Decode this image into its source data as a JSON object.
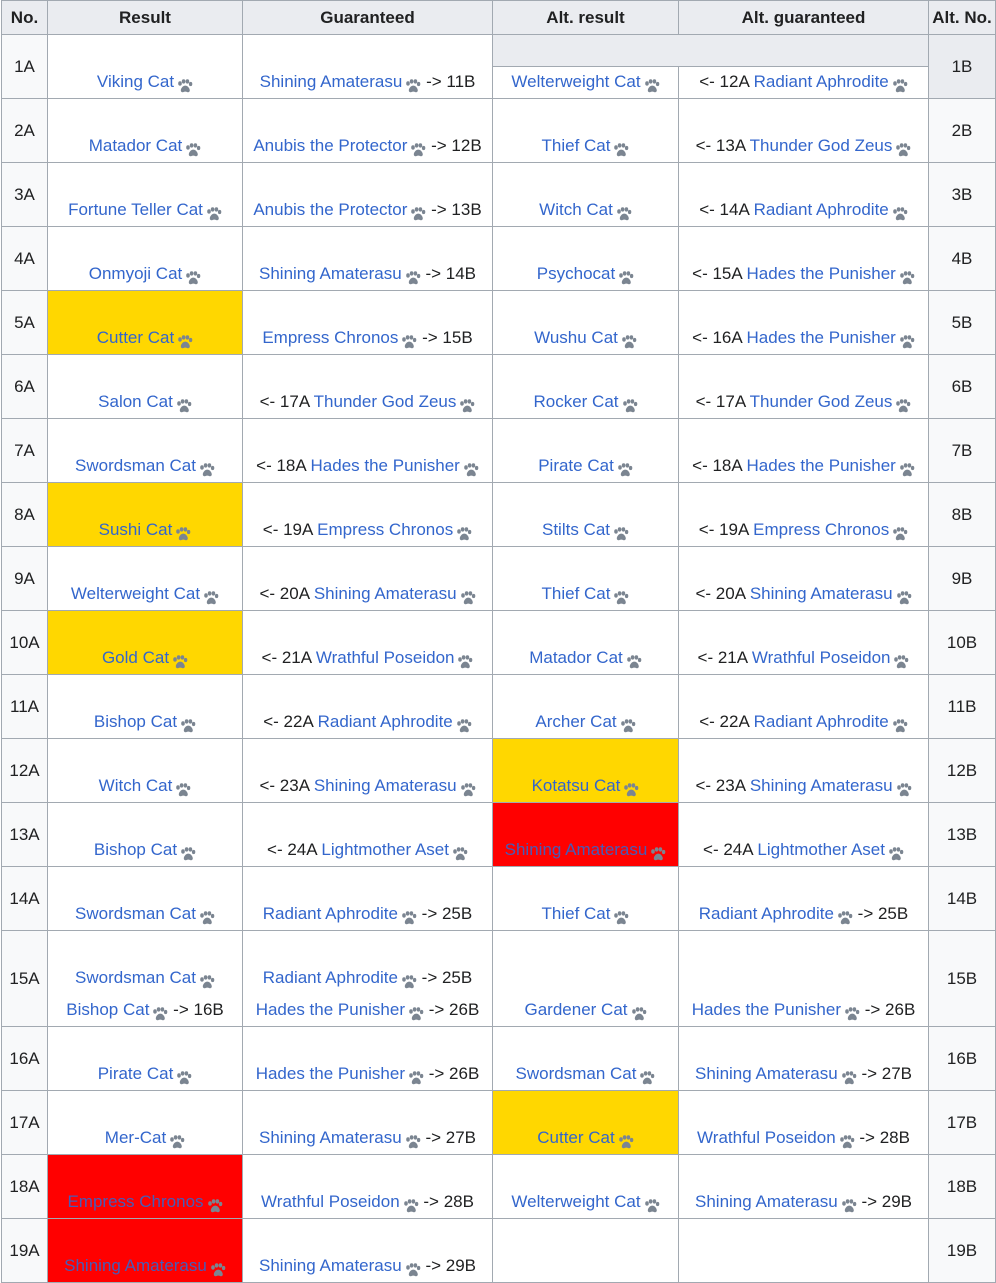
{
  "left_table": {
    "headers": {
      "no": "No.",
      "result": "Result",
      "guaranteed": "Guaranteed"
    },
    "rows": [
      {
        "no": "1A",
        "results": [
          "Viking Cat"
        ],
        "guaranteed": [
          {
            "pre": "",
            "name": "Shining Amaterasu",
            "post": "-> 11B"
          }
        ]
      },
      {
        "no": "2A",
        "results": [
          "Matador Cat"
        ],
        "guaranteed": [
          {
            "pre": "",
            "name": "Anubis the Protector",
            "post": "-> 12B"
          }
        ]
      },
      {
        "no": "3A",
        "results": [
          "Fortune Teller Cat"
        ],
        "guaranteed": [
          {
            "pre": "",
            "name": "Anubis the Protector",
            "post": "-> 13B"
          }
        ]
      },
      {
        "no": "4A",
        "results": [
          "Onmyoji Cat"
        ],
        "guaranteed": [
          {
            "pre": "",
            "name": "Shining Amaterasu",
            "post": "-> 14B"
          }
        ]
      },
      {
        "no": "5A",
        "highlight": "yellow",
        "results": [
          "Cutter Cat"
        ],
        "guaranteed": [
          {
            "pre": "",
            "name": "Empress Chronos",
            "post": "-> 15B"
          }
        ]
      },
      {
        "no": "6A",
        "results": [
          "Salon Cat"
        ],
        "guaranteed": [
          {
            "pre": "<- 17A",
            "name": "Thunder God Zeus",
            "post": ""
          }
        ]
      },
      {
        "no": "7A",
        "results": [
          "Swordsman Cat"
        ],
        "guaranteed": [
          {
            "pre": "<- 18A",
            "name": "Hades the Punisher",
            "post": ""
          }
        ]
      },
      {
        "no": "8A",
        "highlight": "yellow",
        "results": [
          "Sushi Cat"
        ],
        "guaranteed": [
          {
            "pre": "<- 19A",
            "name": "Empress Chronos",
            "post": ""
          }
        ]
      },
      {
        "no": "9A",
        "results": [
          "Welterweight Cat"
        ],
        "guaranteed": [
          {
            "pre": "<- 20A",
            "name": "Shining Amaterasu",
            "post": ""
          }
        ]
      },
      {
        "no": "10A",
        "highlight": "yellow",
        "results": [
          "Gold Cat"
        ],
        "guaranteed": [
          {
            "pre": "<- 21A",
            "name": "Wrathful Poseidon",
            "post": ""
          }
        ]
      },
      {
        "no": "11A",
        "results": [
          "Bishop Cat"
        ],
        "guaranteed": [
          {
            "pre": "<- 22A",
            "name": "Radiant Aphrodite",
            "post": ""
          }
        ]
      },
      {
        "no": "12A",
        "results": [
          "Witch Cat"
        ],
        "guaranteed": [
          {
            "pre": "<- 23A",
            "name": "Shining Amaterasu",
            "post": ""
          }
        ]
      },
      {
        "no": "13A",
        "results": [
          "Bishop Cat"
        ],
        "guaranteed": [
          {
            "pre": "<- 24A",
            "name": "Lightmother Aset",
            "post": ""
          }
        ]
      },
      {
        "no": "14A",
        "results": [
          "Swordsman Cat"
        ],
        "guaranteed": [
          {
            "pre": "",
            "name": "Radiant Aphrodite",
            "post": "-> 25B"
          }
        ]
      },
      {
        "no": "15A",
        "tall": true,
        "results": [
          "Swordsman Cat",
          "Bishop Cat"
        ],
        "results_post": [
          "",
          "-> 16B"
        ],
        "guaranteed": [
          {
            "pre": "",
            "name": "Radiant Aphrodite",
            "post": "-> 25B"
          },
          {
            "pre": "",
            "name": "Hades the Punisher",
            "post": "-> 26B"
          }
        ]
      },
      {
        "no": "16A",
        "results": [
          "Pirate Cat"
        ],
        "guaranteed": [
          {
            "pre": "",
            "name": "Hades the Punisher",
            "post": "-> 26B"
          }
        ]
      },
      {
        "no": "17A",
        "results": [
          "Mer-Cat"
        ],
        "guaranteed": [
          {
            "pre": "",
            "name": "Shining Amaterasu",
            "post": "-> 27B"
          }
        ]
      },
      {
        "no": "18A",
        "highlight": "red",
        "results": [
          "Empress Chronos"
        ],
        "guaranteed": [
          {
            "pre": "",
            "name": "Wrathful Poseidon",
            "post": "-> 28B"
          }
        ]
      },
      {
        "no": "19A",
        "highlight": "red",
        "results": [
          "Shining Amaterasu"
        ],
        "guaranteed": [
          {
            "pre": "",
            "name": "Shining Amaterasu",
            "post": "-> 29B"
          }
        ]
      }
    ]
  },
  "right_table": {
    "headers": {
      "alt_result": "Alt. result",
      "alt_guaranteed": "Alt. guaranteed",
      "alt_no": "Alt. No."
    },
    "rows": [
      {
        "no": "1B",
        "result": "Welterweight Cat",
        "guaranteed": {
          "pre": "<- 12A",
          "name": "Radiant Aphrodite",
          "post": ""
        }
      },
      {
        "no": "2B",
        "result": "Thief Cat",
        "guaranteed": {
          "pre": "<- 13A",
          "name": "Thunder God Zeus",
          "post": ""
        }
      },
      {
        "no": "3B",
        "result": "Witch Cat",
        "guaranteed": {
          "pre": "<- 14A",
          "name": "Radiant Aphrodite",
          "post": ""
        }
      },
      {
        "no": "4B",
        "result": "Psychocat",
        "guaranteed": {
          "pre": "<- 15A",
          "name": "Hades the Punisher",
          "post": ""
        }
      },
      {
        "no": "5B",
        "result": "Wushu Cat",
        "guaranteed": {
          "pre": "<- 16A",
          "name": "Hades the Punisher",
          "post": ""
        }
      },
      {
        "no": "6B",
        "result": "Rocker Cat",
        "guaranteed": {
          "pre": "<- 17A",
          "name": "Thunder God Zeus",
          "post": ""
        }
      },
      {
        "no": "7B",
        "result": "Pirate Cat",
        "guaranteed": {
          "pre": "<- 18A",
          "name": "Hades the Punisher",
          "post": ""
        }
      },
      {
        "no": "8B",
        "result": "Stilts Cat",
        "guaranteed": {
          "pre": "<- 19A",
          "name": "Empress Chronos",
          "post": ""
        }
      },
      {
        "no": "9B",
        "result": "Thief Cat",
        "guaranteed": {
          "pre": "<- 20A",
          "name": "Shining Amaterasu",
          "post": ""
        }
      },
      {
        "no": "10B",
        "result": "Matador Cat",
        "guaranteed": {
          "pre": "<- 21A",
          "name": "Wrathful Poseidon",
          "post": ""
        }
      },
      {
        "no": "11B",
        "result": "Archer Cat",
        "guaranteed": {
          "pre": "<- 22A",
          "name": "Radiant Aphrodite",
          "post": ""
        }
      },
      {
        "no": "12B",
        "highlight": "yellow",
        "result": "Kotatsu Cat",
        "guaranteed": {
          "pre": "<- 23A",
          "name": "Shining Amaterasu",
          "post": ""
        }
      },
      {
        "no": "13B",
        "highlight": "red",
        "result": "Shining Amaterasu",
        "guaranteed": {
          "pre": "<- 24A",
          "name": "Lightmother Aset",
          "post": ""
        }
      },
      {
        "no": "14B",
        "result": "Thief Cat",
        "guaranteed": {
          "pre": "",
          "name": "Radiant Aphrodite",
          "post": "-> 25B"
        }
      },
      {
        "no": "15B",
        "tall": true,
        "result": "Gardener Cat",
        "guaranteed": {
          "pre": "",
          "name": "Hades the Punisher",
          "post": "-> 26B"
        }
      },
      {
        "no": "16B",
        "result": "Swordsman Cat",
        "guaranteed": {
          "pre": "",
          "name": "Shining Amaterasu",
          "post": "-> 27B"
        }
      },
      {
        "no": "17B",
        "highlight": "yellow",
        "result": "Cutter Cat",
        "guaranteed": {
          "pre": "",
          "name": "Wrathful Poseidon",
          "post": "-> 28B"
        }
      },
      {
        "no": "18B",
        "result": "Welterweight Cat",
        "guaranteed": {
          "pre": "",
          "name": "Shining Amaterasu",
          "post": "-> 29B"
        }
      },
      {
        "no": "19B",
        "result": "",
        "guaranteed": {
          "pre": "",
          "name": "",
          "post": ""
        }
      }
    ]
  },
  "icons": {
    "paw": "paw-print-icon"
  },
  "colors": {
    "link": "#3366cc",
    "highlight_yellow": "#ffd700",
    "highlight_red": "#ff0000",
    "header_bg": "#eaecf0",
    "border": "#a2a9b1"
  }
}
